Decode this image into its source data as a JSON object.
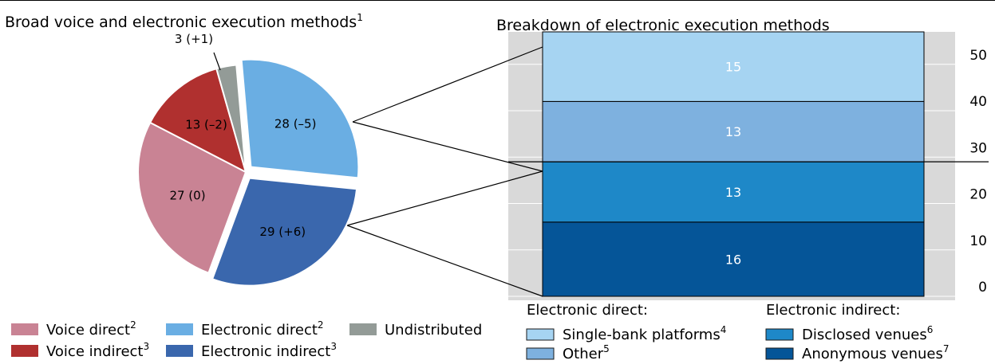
{
  "colors": {
    "voice_direct": "#c98394",
    "voice_indirect": "#b0302f",
    "undistributed": "#939b97",
    "electronic_direct": "#6aaee3",
    "electronic_indirect": "#3a67ad",
    "single_bank": "#a6d4f2",
    "other": "#7eb1df",
    "disclosed": "#1e88c8",
    "anonymous": "#055598",
    "plot_bg": "#d9d9d9"
  },
  "chart_data": [
    {
      "type": "pie",
      "title": "Broad voice and electronic execution methods",
      "title_sup": "1",
      "slices": [
        {
          "key": "electronic_direct",
          "value": 28,
          "label": "28 (–5)",
          "exploded": true
        },
        {
          "key": "electronic_indirect",
          "value": 29,
          "label": "29 (+6)",
          "exploded": true
        },
        {
          "key": "voice_direct",
          "value": 27,
          "label": "27 (0)",
          "exploded": false
        },
        {
          "key": "voice_indirect",
          "value": 13,
          "label": "13 (–2)",
          "exploded": false
        },
        {
          "key": "undistributed",
          "value": 3,
          "label": "3 (+1)",
          "exploded": false
        }
      ],
      "legend": [
        {
          "key": "voice_direct",
          "label": "Voice direct",
          "sup": "2"
        },
        {
          "key": "electronic_direct",
          "label": "Electronic direct",
          "sup": "2"
        },
        {
          "key": "undistributed",
          "label": "Undistributed",
          "sup": ""
        },
        {
          "key": "voice_indirect",
          "label": "Voice indirect",
          "sup": "3"
        },
        {
          "key": "electronic_indirect",
          "label": "Electronic indirect",
          "sup": "3"
        }
      ]
    },
    {
      "type": "bar",
      "stacked": true,
      "title": "Breakdown of electronic execution methods",
      "ylim": [
        0,
        57
      ],
      "yticks": [
        0,
        10,
        20,
        30,
        40,
        50
      ],
      "grid": true,
      "segments": [
        {
          "key": "anonymous",
          "value": 16,
          "label": "16"
        },
        {
          "key": "disclosed",
          "value": 13,
          "label": "13"
        },
        {
          "key": "other",
          "value": 13,
          "label": "13"
        },
        {
          "key": "single_bank",
          "value": 15,
          "label": "15"
        }
      ],
      "legend_groups": [
        {
          "title": "Electronic direct:",
          "items": [
            {
              "key": "single_bank",
              "label": "Single-bank platforms",
              "sup": "4"
            },
            {
              "key": "other",
              "label": "Other",
              "sup": "5"
            }
          ]
        },
        {
          "title": "Electronic indirect:",
          "items": [
            {
              "key": "disclosed",
              "label": "Disclosed venues",
              "sup": "6"
            },
            {
              "key": "anonymous",
              "label": "Anonymous venues",
              "sup": "7"
            }
          ]
        }
      ]
    }
  ]
}
